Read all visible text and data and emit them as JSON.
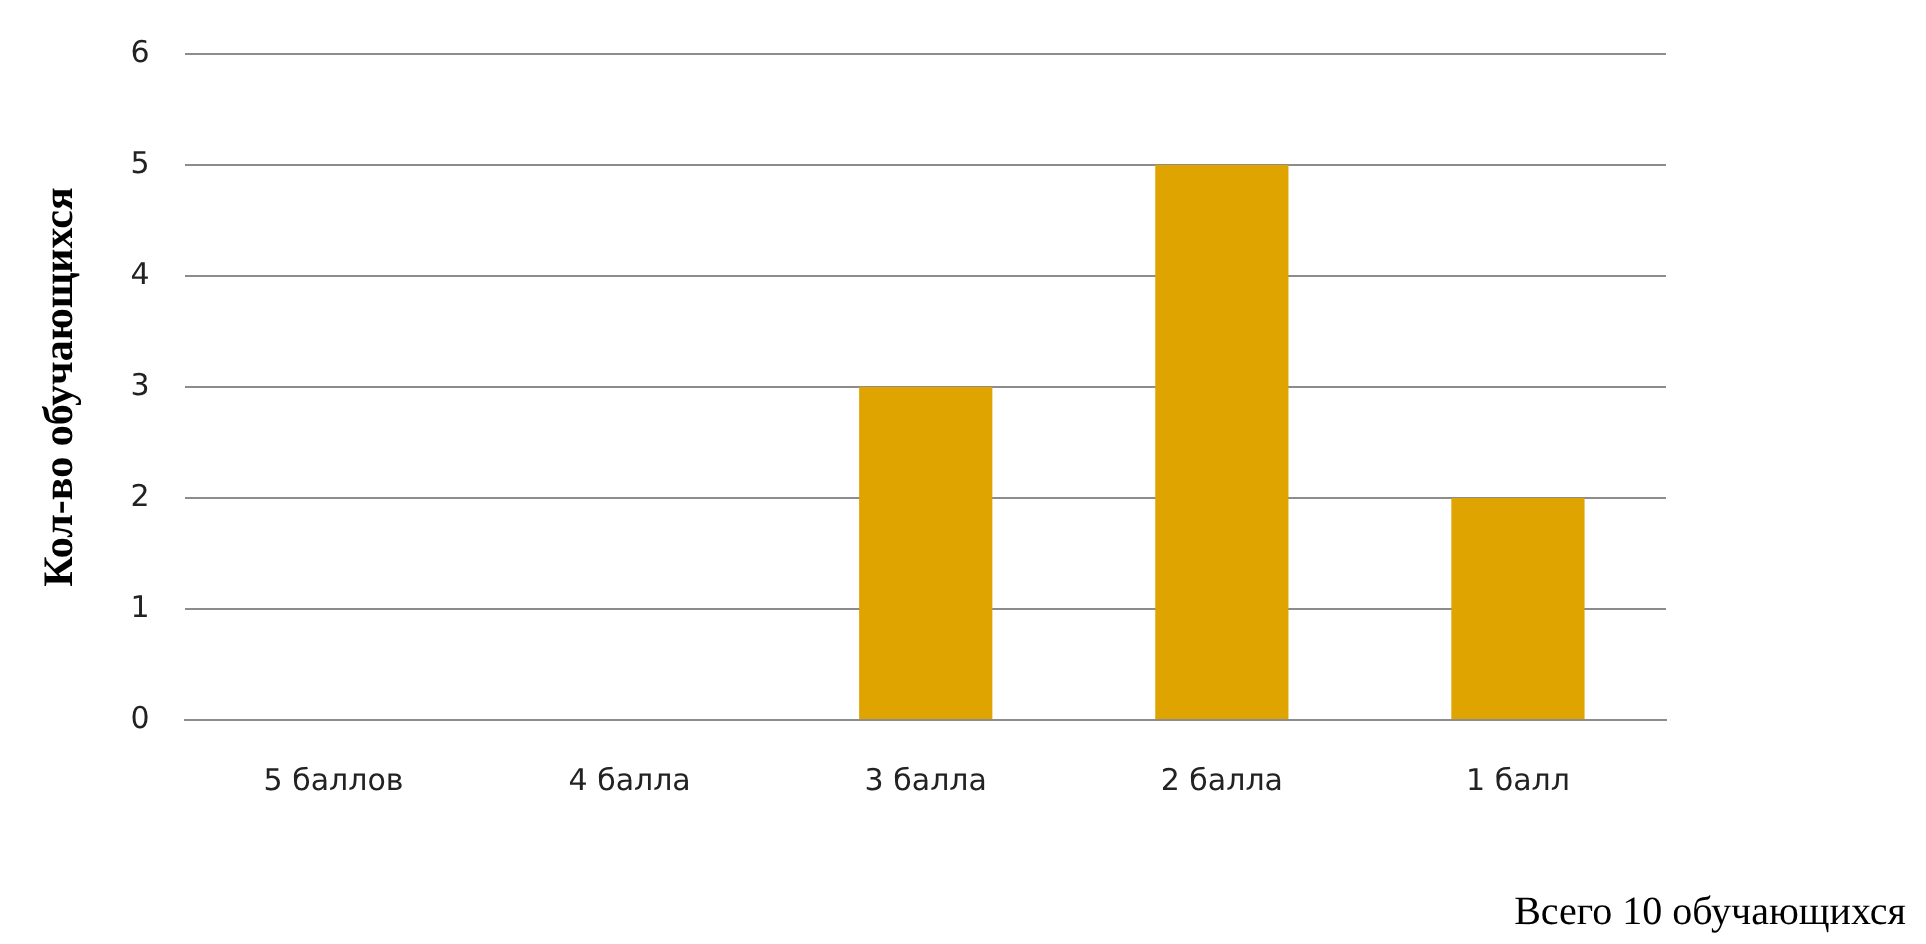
{
  "chart_data": {
    "type": "bar",
    "ylabel": "Кол-во обучающихся",
    "categories": [
      "5 баллов",
      "4 балла",
      "3 балла",
      "2 балла",
      "1 балл"
    ],
    "values": [
      0,
      0,
      3,
      5,
      2
    ],
    "color": "#e0a400",
    "ylim": [
      0,
      6
    ],
    "yticks": [
      0,
      1,
      2,
      3,
      4,
      5,
      6
    ],
    "grid": "y",
    "legend": false,
    "annotations": [
      "Всего 10 обучающихся"
    ]
  }
}
